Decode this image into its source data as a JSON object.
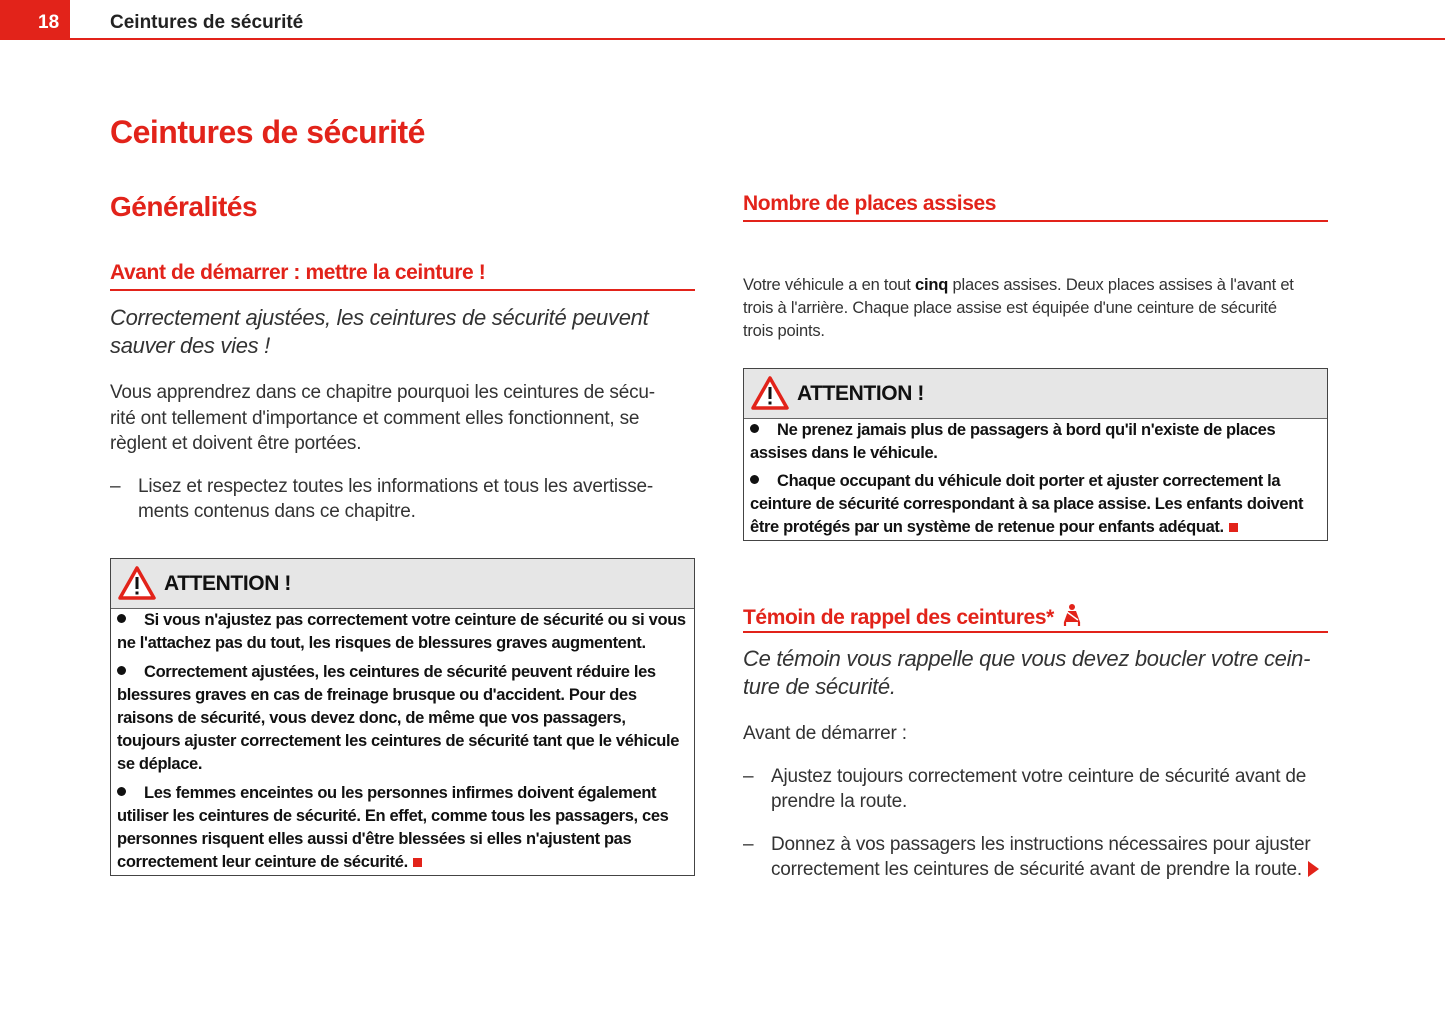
{
  "header": {
    "page_number": "18",
    "running_title": "Ceintures de sécurité"
  },
  "title": "Ceintures de sécurité",
  "left": {
    "section": "Généralités",
    "subsection": "Avant de démarrer : mettre la ceinture !",
    "lead": [
      "Correctement ajustées, les ceintures de sécurité peuvent",
      "sauver des vies !"
    ],
    "intro": [
      "Vous apprendrez dans ce chapitre pourquoi les ceintures de sécu-",
      "rité ont tellement d'importance et comment elles fonctionnent, se",
      "règlent et doivent être portées."
    ],
    "dash_item": [
      "Lisez et respectez toutes les informations et tous les avertisse-",
      "ments contenus dans ce chapitre."
    ],
    "warning": {
      "title": "ATTENTION !",
      "b1": [
        "Si vous n'ajustez pas correctement votre ceinture de sécurité ou si vous",
        "ne l'attachez pas du tout, les risques de blessures graves augmentent."
      ],
      "b2": [
        "Correctement ajustées, les ceintures de sécurité peuvent réduire les",
        "blessures graves en cas de freinage brusque ou d'accident. Pour des",
        "raisons de sécurité, vous devez donc, de même que vos passagers,",
        "toujours ajuster correctement les ceintures de sécurité tant que le véhicule",
        "se déplace."
      ],
      "b3": [
        "Les femmes enceintes ou les personnes infirmes doivent également",
        "utiliser les ceintures de sécurité. En effet, comme tous les passagers, ces",
        "personnes risquent elles aussi d'être blessées si elles n'ajustent pas",
        "correctement leur ceinture de sécurité."
      ]
    }
  },
  "right": {
    "seats_heading": "Nombre de places assises",
    "seats_text": {
      "l1a": "Votre véhicule a en tout ",
      "l1b": "cinq",
      "l1c": " places assises. Deux places assises à l'avant et",
      "l2": "trois à l'arrière. Chaque place assise est équipée d'une ceinture de sécurité",
      "l3": "trois points."
    },
    "warning": {
      "title": "ATTENTION !",
      "b1": [
        "Ne prenez jamais plus de passagers à bord qu'il n'existe de places",
        "assises dans le véhicule."
      ],
      "b2": [
        "Chaque occupant du véhicule doit porter et ajuster correctement la",
        "ceinture de sécurité correspondant à sa place assise. Les enfants doivent",
        "être protégés par un système de retenue pour enfants adéquat."
      ]
    },
    "reminder_heading": "Témoin de rappel des ceintures*",
    "reminder_icon": "seatbelt-warning-icon",
    "lead": [
      "Ce témoin vous rappelle que vous devez boucler votre cein-",
      "ture de sécurité."
    ],
    "before": "Avant de démarrer :",
    "item1": [
      "Ajustez toujours correctement votre ceinture de sécurité avant de",
      "prendre la route."
    ],
    "item2": [
      "Donnez à vos passagers les instructions nécessaires pour ajuster",
      "correctement les ceintures de sécurité avant de prendre la route."
    ],
    "dash": "–"
  },
  "colors": {
    "accent": "#e2231a",
    "box_header": "#e6e6e6"
  }
}
